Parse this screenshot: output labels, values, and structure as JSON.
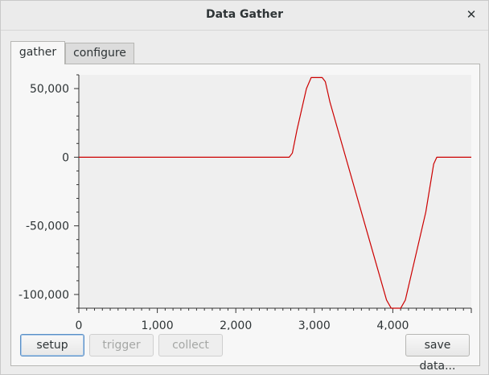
{
  "window": {
    "title": "Data Gather",
    "close_glyph": "✕"
  },
  "tabs": [
    {
      "label": "gather",
      "active": true
    },
    {
      "label": "configure",
      "active": false
    }
  ],
  "buttons": {
    "setup": "setup",
    "trigger": "trigger",
    "collect": "collect",
    "save": "save data..."
  },
  "chart_data": {
    "type": "line",
    "xlim": [
      0,
      5000
    ],
    "ylim": [
      -110000,
      60000
    ],
    "x_ticks": [
      0,
      1000,
      2000,
      3000,
      4000
    ],
    "x_tick_labels": [
      "0",
      "1,000",
      "2,000",
      "3,000",
      "4,000"
    ],
    "y_ticks": [
      50000,
      0,
      -50000,
      -100000
    ],
    "y_tick_labels": [
      "50,000",
      "0",
      "-50,000",
      "-100,000"
    ],
    "grid": false,
    "background": "#efefef",
    "line_color": "#cc0000",
    "series": [
      {
        "x": [
          0,
          2680,
          2720,
          2780,
          2900,
          2960,
          3000,
          3100,
          3140,
          3200,
          3700,
          3920,
          3980,
          4020,
          4100,
          4160,
          4420,
          4520,
          4560,
          4600,
          5000
        ],
        "y": [
          0,
          0,
          3000,
          20000,
          50000,
          58000,
          58000,
          58000,
          55000,
          40000,
          -60000,
          -104000,
          -110000,
          -110000,
          -110000,
          -104000,
          -40000,
          -5000,
          0,
          0,
          0
        ]
      }
    ]
  }
}
